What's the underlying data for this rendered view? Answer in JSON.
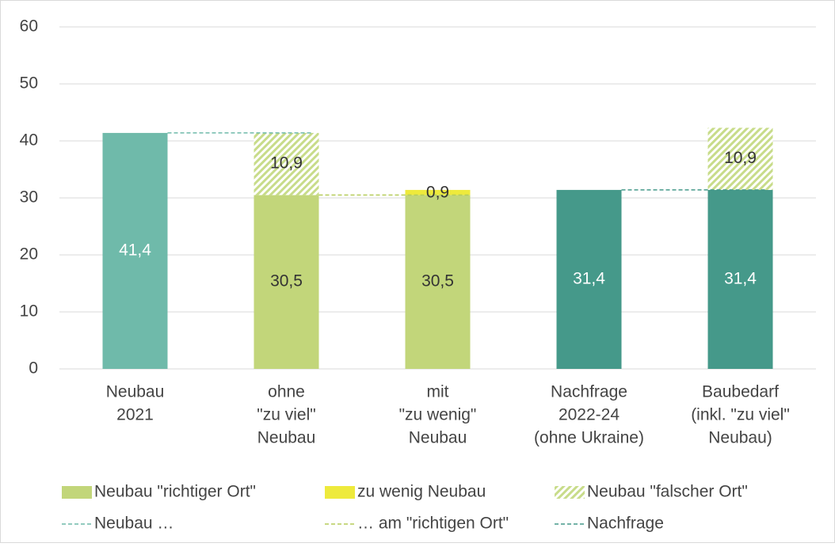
{
  "chart_data": {
    "type": "stacked_bar",
    "categories": [
      [
        "Neubau",
        "2021"
      ],
      [
        "ohne",
        "\"zu viel\"",
        "Neubau"
      ],
      [
        "mit",
        "\"zu wenig\"",
        "Neubau"
      ],
      [
        "Nachfrage",
        "2022-24",
        "(ohne Ukraine)"
      ],
      [
        "Baubedarf",
        "(inkl. \"zu viel\"",
        "Neubau)"
      ]
    ],
    "series": [
      {
        "color": "#6fbaaa",
        "label_color": "#ffffff",
        "values": [
          41.4,
          null,
          null,
          null,
          null
        ],
        "value_labels": [
          "41,4",
          null,
          null,
          null,
          null
        ]
      },
      {
        "name": "Neubau \"richtiger Ort\"",
        "color": "#c2d67a",
        "label_color": "#333333",
        "values": [
          null,
          30.5,
          30.5,
          null,
          null
        ],
        "value_labels": [
          null,
          "30,5",
          "30,5",
          null,
          null
        ]
      },
      {
        "color": "#45998a",
        "label_color": "#ffffff",
        "values": [
          null,
          null,
          null,
          31.4,
          31.4
        ],
        "value_labels": [
          null,
          null,
          null,
          "31,4",
          "31,4"
        ]
      },
      {
        "name": "zu wenig Neubau",
        "color": "#eeea3c",
        "label_color": "#333333",
        "values": [
          null,
          null,
          0.9,
          null,
          null
        ],
        "value_labels": [
          null,
          null,
          "0,9",
          null,
          null
        ]
      },
      {
        "name": "Neubau \"falscher Ort\"",
        "color": "#c8dc8a",
        "hatch": true,
        "label_color": "#333333",
        "values": [
          null,
          10.9,
          null,
          null,
          10.9
        ],
        "value_labels": [
          null,
          "10,9",
          null,
          null,
          "10,9"
        ]
      }
    ],
    "lines": [
      {
        "name": "Neubau …",
        "color": "#6fbaaa",
        "values": [
          41.4,
          41.4,
          null,
          null,
          null
        ]
      },
      {
        "name": "… am \"richtigen Ort\"",
        "color": "#b5cc5a",
        "values": [
          null,
          30.5,
          30.5,
          null,
          null
        ]
      },
      {
        "name": "Nachfrage",
        "color": "#45998a",
        "values": [
          null,
          null,
          null,
          31.4,
          31.4
        ]
      }
    ],
    "ylim": [
      0,
      60
    ],
    "yticks": [
      0,
      10,
      20,
      30,
      40,
      50,
      60
    ],
    "grid": true
  }
}
